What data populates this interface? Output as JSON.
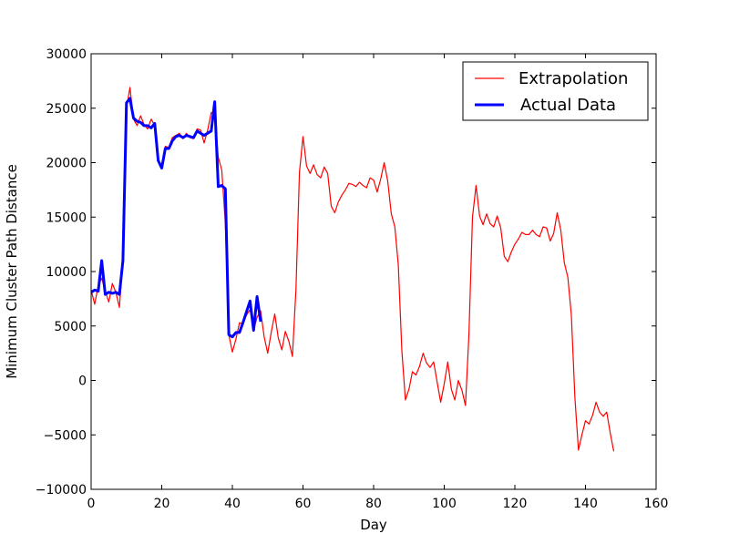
{
  "chart_data": {
    "type": "line",
    "title": "",
    "xlabel": "Day",
    "ylabel": "Minimum Cluster Path Distance",
    "xlim": [
      0,
      160
    ],
    "ylim": [
      -10000,
      30000
    ],
    "grid": false,
    "legend_position": "top-right",
    "x_ticks": [
      "0",
      "20",
      "40",
      "60",
      "80",
      "100",
      "120",
      "140",
      "160"
    ],
    "y_ticks": [
      "−10000",
      "−5000",
      "0",
      "5000",
      "10000",
      "15000",
      "20000",
      "25000",
      "30000"
    ],
    "series": [
      {
        "name": "Extrapolation",
        "color": "#ff0000",
        "x": [
          0,
          1,
          2,
          3,
          4,
          5,
          6,
          7,
          8,
          9,
          10,
          11,
          12,
          13,
          14,
          15,
          16,
          17,
          18,
          19,
          20,
          21,
          22,
          23,
          24,
          25,
          26,
          27,
          28,
          29,
          30,
          31,
          32,
          33,
          34,
          35,
          36,
          37,
          38,
          39,
          40,
          41,
          42,
          43,
          44,
          45,
          46,
          47,
          48,
          49,
          50,
          51,
          52,
          53,
          54,
          55,
          56,
          57,
          58,
          59,
          60,
          61,
          62,
          63,
          64,
          65,
          66,
          67,
          68,
          69,
          70,
          71,
          72,
          73,
          74,
          75,
          76,
          77,
          78,
          79,
          80,
          81,
          82,
          83,
          84,
          85,
          86,
          87,
          88,
          89,
          90,
          91,
          92,
          93,
          94,
          95,
          96,
          97,
          98,
          99,
          100,
          101,
          102,
          103,
          104,
          105,
          106,
          107,
          108,
          109,
          110,
          111,
          112,
          113,
          114,
          115,
          116,
          117,
          118,
          119,
          120,
          121,
          122,
          123,
          124,
          125,
          126,
          127,
          128,
          129,
          130,
          131,
          132,
          133,
          134,
          135,
          136,
          137,
          138,
          139,
          140,
          141,
          142,
          143,
          144,
          145,
          146,
          147,
          148
        ],
        "values": [
          8300,
          7000,
          8700,
          9400,
          8200,
          7200,
          8900,
          8100,
          6700,
          11000,
          25000,
          26900,
          24000,
          23400,
          24300,
          23500,
          23100,
          24000,
          23400,
          20100,
          19800,
          21500,
          21400,
          22300,
          22500,
          22700,
          22200,
          22700,
          22300,
          22200,
          23100,
          23000,
          21800,
          23000,
          24600,
          24500,
          20500,
          19300,
          14400,
          4200,
          2600,
          3800,
          5300,
          5200,
          6000,
          6500,
          4600,
          5800,
          6400,
          4000,
          2500,
          4400,
          6100,
          3900,
          2800,
          4500,
          3600,
          2200,
          8400,
          19100,
          22400,
          19700,
          19000,
          19800,
          18900,
          18600,
          19600,
          19000,
          16000,
          15400,
          16400,
          17000,
          17500,
          18100,
          18000,
          17800,
          18200,
          17900,
          17700,
          18600,
          18400,
          17300,
          18500,
          20000,
          18300,
          15300,
          14100,
          10600,
          2700,
          -1800,
          -800,
          800,
          500,
          1300,
          2500,
          1600,
          1200,
          1700,
          -200,
          -2000,
          -300,
          1700,
          -800,
          -1800,
          0,
          -900,
          -2300,
          4200,
          15000,
          17900,
          15100,
          14300,
          15300,
          14400,
          14100,
          15100,
          14000,
          11400,
          10900,
          11800,
          12500,
          13000,
          13600,
          13400,
          13400,
          13800,
          13400,
          13200,
          14100,
          14000,
          12800,
          13500,
          15400,
          13800,
          10800,
          9500,
          6000,
          -1600,
          -6400,
          -5000,
          -3700,
          -4000,
          -3200,
          -2000,
          -2900,
          -3300,
          -2900,
          -4800,
          -6500
        ]
      },
      {
        "name": "Actual Data",
        "color": "#0000ff",
        "x": [
          0,
          1,
          2,
          3,
          4,
          5,
          6,
          7,
          8,
          9,
          10,
          11,
          12,
          13,
          14,
          15,
          16,
          17,
          18,
          19,
          20,
          21,
          22,
          23,
          24,
          25,
          26,
          27,
          28,
          29,
          30,
          31,
          32,
          33,
          34,
          35,
          36,
          37,
          38,
          39,
          40,
          41,
          42,
          43,
          44,
          45,
          46,
          47,
          48
        ],
        "values": [
          8100,
          8300,
          8200,
          11000,
          7900,
          8100,
          8000,
          8100,
          7900,
          11000,
          25500,
          25900,
          24100,
          23800,
          23700,
          23400,
          23400,
          23200,
          23600,
          20200,
          19500,
          21300,
          21300,
          22000,
          22400,
          22500,
          22300,
          22500,
          22400,
          22300,
          22900,
          22700,
          22500,
          22700,
          22900,
          25600,
          17800,
          17900,
          17600,
          4200,
          4000,
          4400,
          4400,
          5300,
          6300,
          7300,
          4600,
          7700,
          5400
        ]
      }
    ]
  }
}
